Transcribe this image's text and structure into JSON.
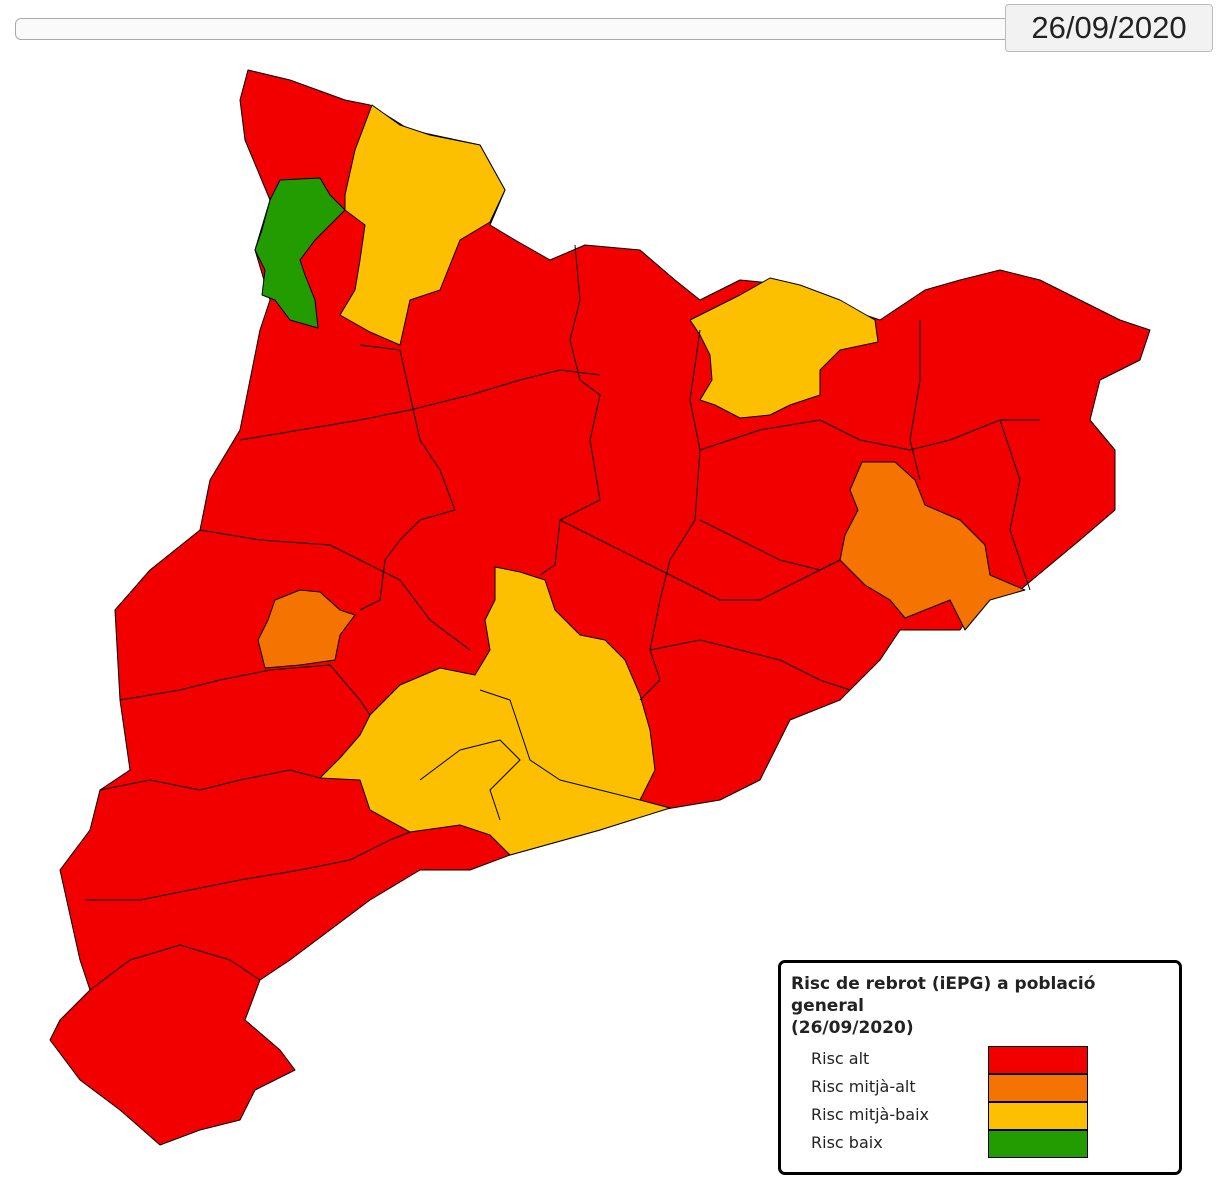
{
  "date": "26/09/2020",
  "legend": {
    "title": "Risc de rebrot (iEPG) a població general",
    "subtitle": "(26/09/2020)",
    "items": [
      {
        "label": "Risc alt",
        "color": "#f20000"
      },
      {
        "label": "Risc mitjà-alt",
        "color": "#f57300"
      },
      {
        "label": "Risc mitjà-baix",
        "color": "#fcc000"
      },
      {
        "label": "Risc baix",
        "color": "#229c00"
      }
    ]
  }
}
